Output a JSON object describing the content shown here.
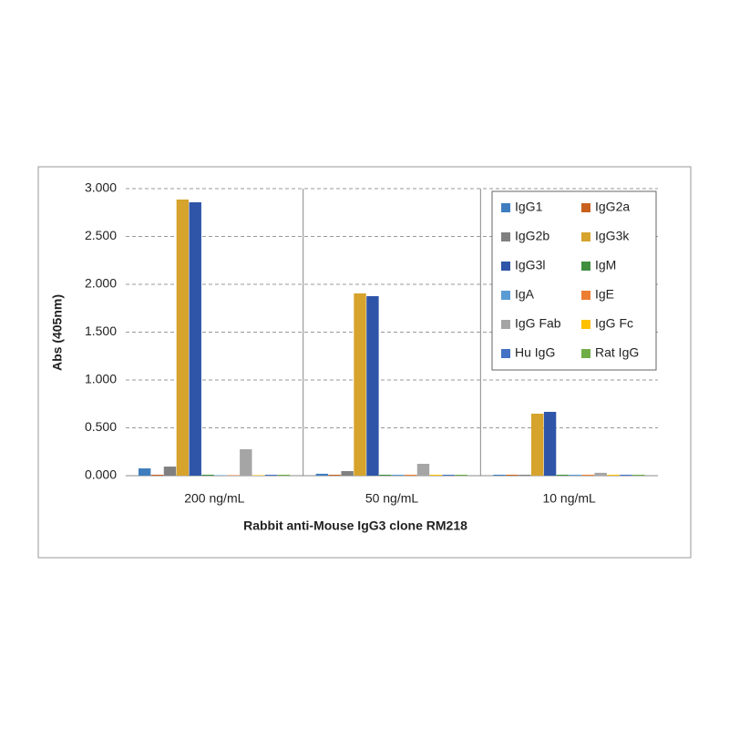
{
  "chart_data": {
    "type": "bar",
    "x_label": "Rabbit anti-Mouse IgG3 clone RM218",
    "y_label": "Abs (405nm)",
    "categories": [
      "200 ng/mL",
      "50 ng/mL",
      "10 ng/mL"
    ],
    "series": [
      {
        "name": "IgG1",
        "color": "#3e7ebf",
        "values": [
          0.076,
          0.02,
          0.01
        ]
      },
      {
        "name": "IgG2a",
        "color": "#c8611e",
        "values": [
          0.01,
          0.01,
          0.01
        ]
      },
      {
        "name": "IgG2b",
        "color": "#808080",
        "values": [
          0.095,
          0.048,
          0.01
        ]
      },
      {
        "name": "IgG3k",
        "color": "#d6a32c",
        "values": [
          2.886,
          1.905,
          0.648
        ]
      },
      {
        "name": "IgG3l",
        "color": "#2e55a8",
        "values": [
          2.857,
          1.876,
          0.667
        ]
      },
      {
        "name": "IgM",
        "color": "#3f8f3f",
        "values": [
          0.01,
          0.01,
          0.01
        ]
      },
      {
        "name": "IgA",
        "color": "#5b9bd5",
        "values": [
          0.005,
          0.01,
          0.01
        ]
      },
      {
        "name": "IgE",
        "color": "#ed7d31",
        "values": [
          0.005,
          0.01,
          0.01
        ]
      },
      {
        "name": "IgG Fab",
        "color": "#a5a5a5",
        "values": [
          0.276,
          0.124,
          0.03
        ]
      },
      {
        "name": "IgG Fc",
        "color": "#ffc000",
        "values": [
          0.005,
          0.01,
          0.01
        ]
      },
      {
        "name": "Hu IgG",
        "color": "#4472c4",
        "values": [
          0.01,
          0.01,
          0.01
        ]
      },
      {
        "name": "Rat IgG",
        "color": "#70ad47",
        "values": [
          0.01,
          0.01,
          0.01
        ]
      }
    ],
    "ylim": [
      0,
      3
    ],
    "yticks": [
      {
        "value": 0,
        "label": "0.000"
      },
      {
        "value": 0.5,
        "label": "0.500"
      },
      {
        "value": 1,
        "label": "1.000"
      },
      {
        "value": 1.5,
        "label": "1.500"
      },
      {
        "value": 2,
        "label": "2.000"
      },
      {
        "value": 2.5,
        "label": "2.500"
      },
      {
        "value": 3,
        "label": "3.000"
      }
    ],
    "grid": true,
    "legend": "top-right"
  }
}
